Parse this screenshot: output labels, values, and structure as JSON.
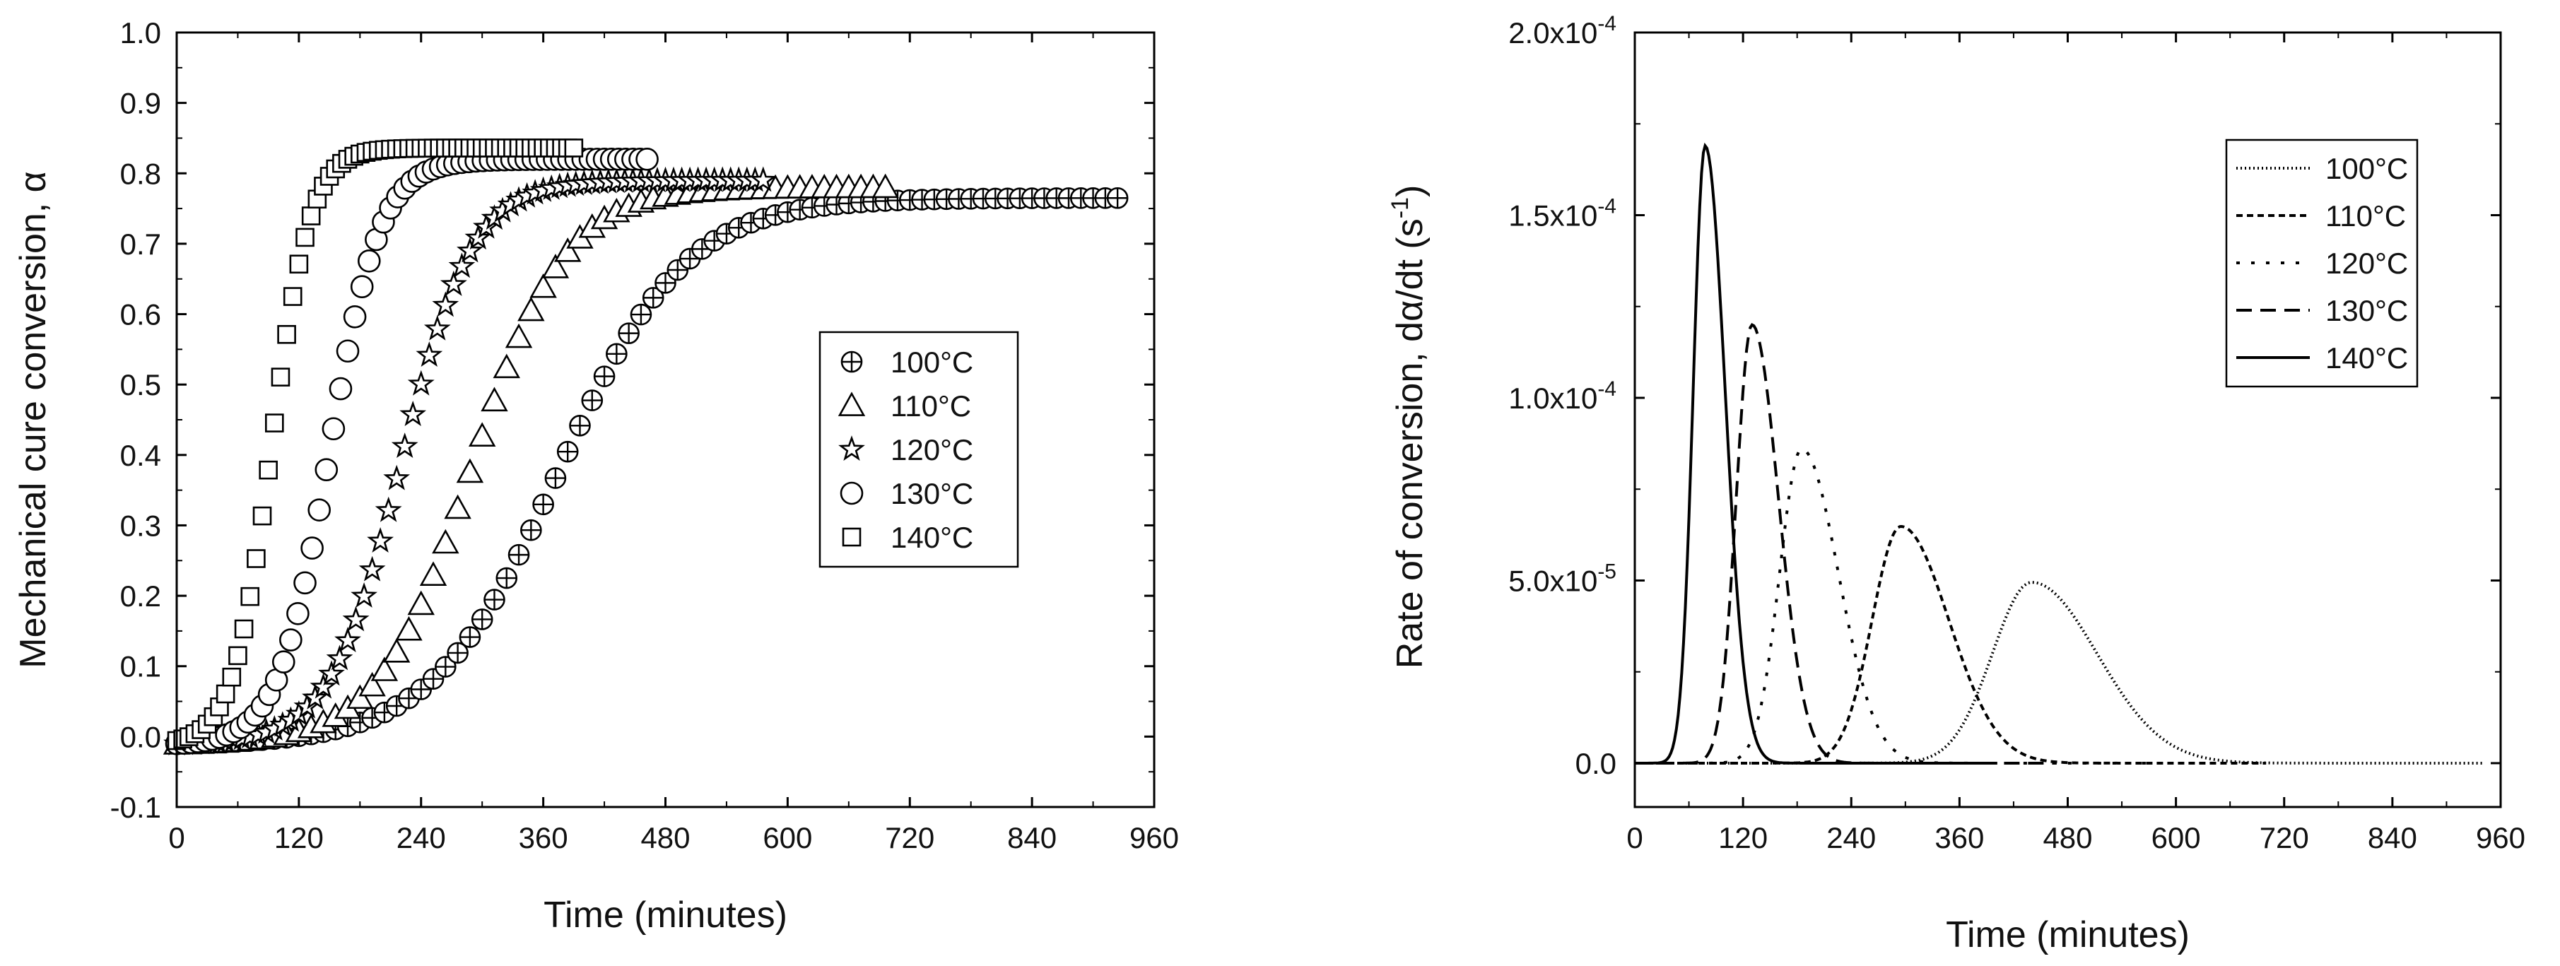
{
  "chart_data": [
    {
      "type": "scatter",
      "title": "",
      "xlabel": "Time (minutes)",
      "ylabel": "Mechanical cure conversion, α",
      "xlim": [
        0,
        960
      ],
      "ylim": [
        -0.1,
        1.0
      ],
      "xticks": [
        "0",
        "120",
        "240",
        "360",
        "480",
        "600",
        "720",
        "840",
        "960"
      ],
      "yticks": [
        "-0.1",
        "0.0",
        "0.1",
        "0.2",
        "0.3",
        "0.4",
        "0.5",
        "0.6",
        "0.7",
        "0.8",
        "0.9",
        "1.0"
      ],
      "legend_position": "center-right",
      "series": [
        {
          "name": "100°C",
          "marker": "circle-plus",
          "t50": 375,
          "width": 62,
          "start": 0,
          "end": 930,
          "step": 12,
          "plateau": 0.765
        },
        {
          "name": "110°C",
          "marker": "triangle",
          "t50": 290,
          "width": 46,
          "start": 0,
          "end": 700,
          "step": 12,
          "plateau": 0.78
        },
        {
          "name": "120°C",
          "marker": "star",
          "t50": 220,
          "width": 35,
          "start": 0,
          "end": 580,
          "step": 8,
          "plateau": 0.79
        },
        {
          "name": "130°C",
          "marker": "circle",
          "t50": 150,
          "width": 25,
          "start": 0,
          "end": 465,
          "step": 7,
          "plateau": 0.82
        },
        {
          "name": "140°C",
          "marker": "square",
          "t50": 93,
          "width": 19,
          "start": 0,
          "end": 390,
          "step": 6,
          "plateau": 0.836
        }
      ]
    },
    {
      "type": "line",
      "title": "",
      "xlabel": "Time (minutes)",
      "ylabel_main": "Rate of conversion, dα/dt (s",
      "ylabel_exp": "-1",
      "ylabel_close": ")",
      "xlim": [
        0,
        960
      ],
      "ylim": [
        -1.2e-05,
        0.0002
      ],
      "xticks": [
        "0",
        "120",
        "240",
        "360",
        "480",
        "600",
        "720",
        "840",
        "960"
      ],
      "yticks": [
        {
          "value": 0.0,
          "base": "0.0",
          "exp": ""
        },
        {
          "value": 5e-05,
          "base": "5.0x10",
          "exp": "-5"
        },
        {
          "value": 0.0001,
          "base": "1.0x10",
          "exp": "-4"
        },
        {
          "value": 0.00015,
          "base": "1.5x10",
          "exp": "-4"
        },
        {
          "value": 0.0002,
          "base": "2.0x10",
          "exp": "-4"
        }
      ],
      "legend_position": "top-right",
      "series": [
        {
          "name": "100°C",
          "dash": "2,4",
          "peak_time": 440,
          "peak_rate": 4.95e-05,
          "width": 82,
          "end": 940
        },
        {
          "name": "110°C",
          "dash": "9,6",
          "peak_time": 295,
          "peak_rate": 6.48e-05,
          "width": 60,
          "end": 700
        },
        {
          "name": "120°C",
          "dash": "5,16",
          "peak_time": 185,
          "peak_rate": 8.6e-05,
          "width": 46,
          "end": 590
        },
        {
          "name": "130°C",
          "dash": "22,12",
          "peak_time": 130,
          "peak_rate": 0.00012,
          "width": 33,
          "end": 465
        },
        {
          "name": "140°C",
          "dash": "",
          "peak_time": 78,
          "peak_rate": 0.000169,
          "width": 25,
          "end": 395
        }
      ]
    }
  ]
}
